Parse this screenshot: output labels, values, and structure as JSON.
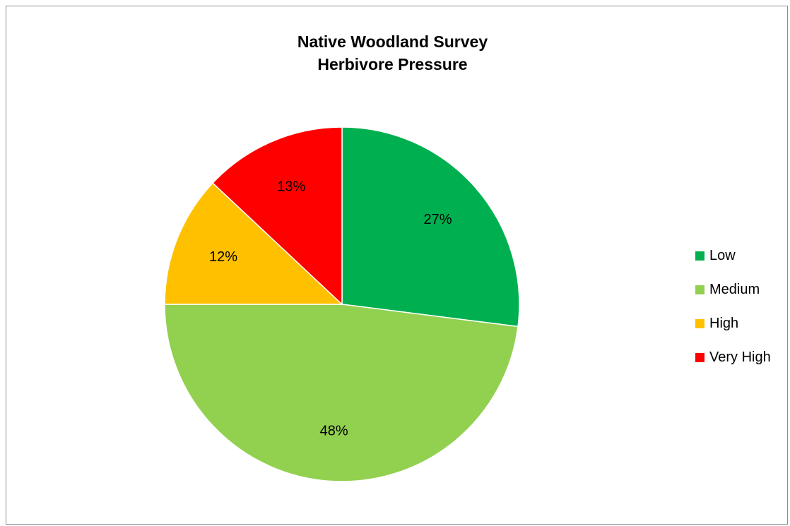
{
  "chart_data": {
    "type": "pie",
    "title": "Native Woodland Survey",
    "subtitle": "Herbivore Pressure",
    "categories": [
      "Low",
      "Medium",
      "High",
      "Very High"
    ],
    "values": [
      27,
      48,
      12,
      13
    ],
    "data_labels": [
      "27%",
      "48%",
      "12%",
      "13%"
    ],
    "colors": [
      "#00B050",
      "#92D050",
      "#FFC000",
      "#FF0000"
    ],
    "legend_position": "right",
    "start_angle": "12 o'clock",
    "direction": "clockwise"
  }
}
